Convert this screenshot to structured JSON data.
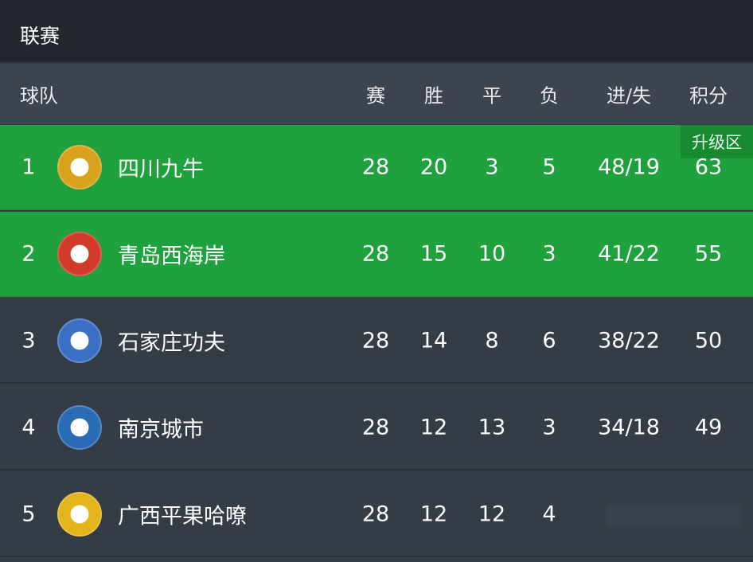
{
  "title": "联赛",
  "headers": {
    "team": "球队",
    "played": "赛",
    "won": "胜",
    "drawn": "平",
    "lost": "负",
    "goals": "进/失",
    "points": "积分"
  },
  "promotion_label": "升级区",
  "colors": {
    "promotion": "#1fa23d",
    "row": "#343c45",
    "header": "#3d4450",
    "title_bar": "#22272e"
  },
  "rows": [
    {
      "rank": "1",
      "team": "四川九牛",
      "played": "28",
      "won": "20",
      "drawn": "3",
      "lost": "5",
      "goals": "48/19",
      "points": "63",
      "logo_color": "#d9a21c"
    },
    {
      "rank": "2",
      "team": "青岛西海岸",
      "played": "28",
      "won": "15",
      "drawn": "10",
      "lost": "3",
      "goals": "41/22",
      "points": "55",
      "logo_color": "#d23a2a"
    },
    {
      "rank": "3",
      "team": "石家庄功夫",
      "played": "28",
      "won": "14",
      "drawn": "8",
      "lost": "6",
      "goals": "38/22",
      "points": "50",
      "logo_color": "#3b6fc4"
    },
    {
      "rank": "4",
      "team": "南京城市",
      "played": "28",
      "won": "12",
      "drawn": "13",
      "lost": "3",
      "goals": "34/18",
      "points": "49",
      "logo_color": "#2a6bb5"
    },
    {
      "rank": "5",
      "team": "广西平果哈嘹",
      "played": "28",
      "won": "12",
      "drawn": "12",
      "lost": "4",
      "goals": "",
      "points": "",
      "logo_color": "#e3b51a"
    }
  ]
}
